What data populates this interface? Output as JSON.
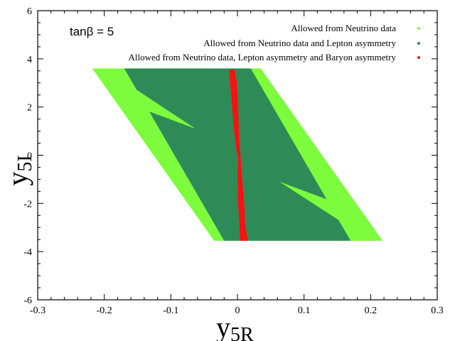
{
  "chart_data": {
    "type": "scatter",
    "title": "",
    "xlabel": {
      "main": "y",
      "sub": "5R"
    },
    "ylabel": {
      "main": "y",
      "sub": "5I"
    },
    "xlim": [
      -0.3,
      0.3
    ],
    "ylim": [
      -6,
      6
    ],
    "x_ticks": [
      -0.3,
      -0.2,
      -0.1,
      0,
      0.1,
      0.2,
      0.3
    ],
    "x_tick_labels": [
      "-0.3",
      "-0.2",
      "-0.1",
      "0",
      "0.1",
      "0.2",
      "0.3"
    ],
    "y_ticks": [
      -6,
      -4,
      -2,
      0,
      2,
      4,
      6
    ],
    "y_tick_labels": [
      "-6",
      "-4",
      "-2",
      "0",
      "2",
      "4",
      "6"
    ],
    "grid": false,
    "annotation": "tanβ = 5",
    "legend_position": "top-right",
    "series": [
      {
        "name": "Allowed from Neutrino data",
        "color": "#7cfc3c",
        "region": [
          [
            -0.218,
            3.6
          ],
          [
            0.035,
            3.6
          ],
          [
            0.218,
            -3.55
          ],
          [
            -0.035,
            -3.55
          ]
        ]
      },
      {
        "name": "Allowed from Neutrino data and Lepton asymmetry",
        "color": "#2e8b57",
        "region": [
          [
            -0.17,
            3.6
          ],
          [
            0.02,
            3.6
          ],
          [
            0.17,
            -3.55
          ],
          [
            -0.02,
            -3.55
          ]
        ],
        "light_wedges": [
          [
            [
              -0.2,
              3.6
            ],
            [
              -0.18,
              2.3
            ],
            [
              -0.063,
              1.1
            ]
          ],
          [
            [
              0.2,
              -3.55
            ],
            [
              0.18,
              -2.3
            ],
            [
              0.063,
              -1.1
            ]
          ]
        ]
      },
      {
        "name": "Allowed from Neutrino data, Lepton asymmetry and Baryon asymmetry",
        "color": "#ff1010",
        "band": [
          {
            "y": 3.55,
            "xmin": -0.013,
            "xmax": -0.004
          },
          {
            "y": 3.0,
            "xmin": -0.011,
            "xmax": -0.001
          },
          {
            "y": 2.0,
            "xmin": -0.008,
            "xmax": 0.001
          },
          {
            "y": 1.0,
            "xmin": -0.005,
            "xmax": 0.002
          },
          {
            "y": 0.5,
            "xmin": -0.003,
            "xmax": 0.003
          },
          {
            "y": -0.2,
            "xmin": 0.001,
            "xmax": 0.005
          },
          {
            "y": -1.0,
            "xmin": 0.0,
            "xmax": 0.007
          },
          {
            "y": -2.0,
            "xmin": 0.001,
            "xmax": 0.01
          },
          {
            "y": -3.0,
            "xmin": 0.003,
            "xmax": 0.012
          },
          {
            "y": -3.55,
            "xmin": 0.004,
            "xmax": 0.016
          }
        ]
      }
    ]
  }
}
